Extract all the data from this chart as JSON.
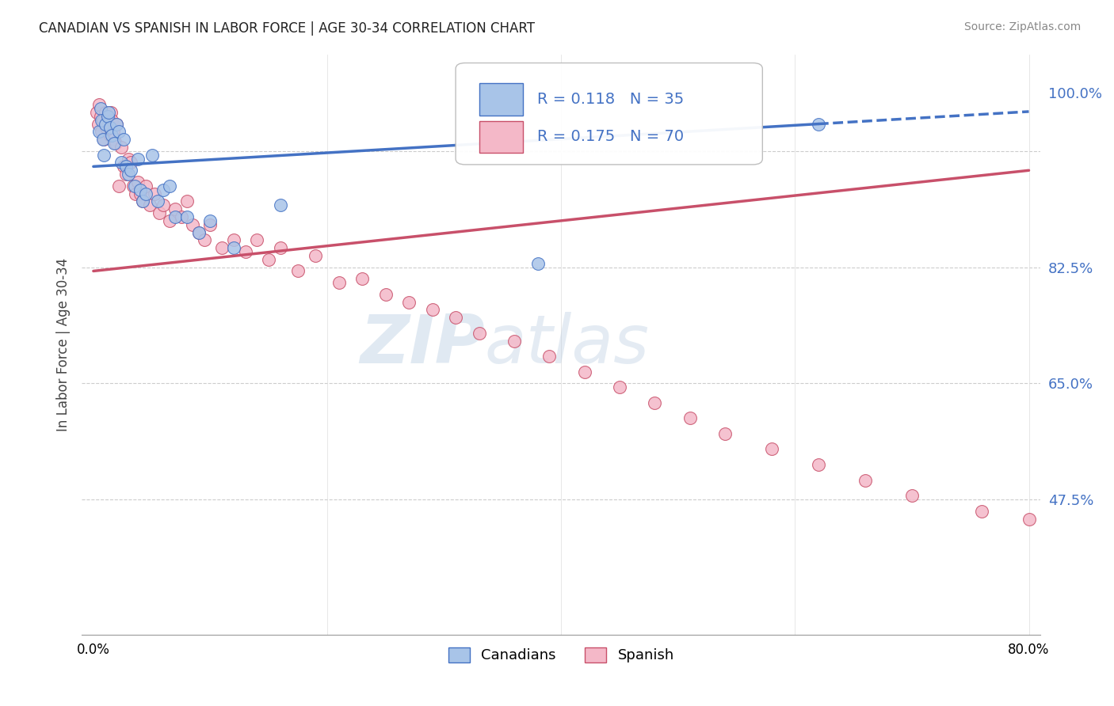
{
  "title": "CANADIAN VS SPANISH IN LABOR FORCE | AGE 30-34 CORRELATION CHART",
  "source": "Source: ZipAtlas.com",
  "ylabel": "In Labor Force | Age 30-34",
  "xlim": [
    0.0,
    0.8
  ],
  "ylim": [
    0.3,
    1.05
  ],
  "legend_blue_R": "0.118",
  "legend_blue_N": "35",
  "legend_pink_R": "0.175",
  "legend_pink_N": "70",
  "blue_color": "#a8c4e8",
  "pink_color": "#f4b8c8",
  "blue_line_color": "#4472c4",
  "pink_line_color": "#c8506a",
  "canadians_x": [
    0.005,
    0.006,
    0.007,
    0.008,
    0.009,
    0.01,
    0.012,
    0.013,
    0.014,
    0.016,
    0.018,
    0.02,
    0.022,
    0.024,
    0.026,
    0.028,
    0.03,
    0.032,
    0.035,
    0.038,
    0.04,
    0.042,
    0.045,
    0.05,
    0.055,
    0.06,
    0.065,
    0.07,
    0.08,
    0.09,
    0.1,
    0.12,
    0.16,
    0.38,
    0.62
  ],
  "canadians_y": [
    0.95,
    0.98,
    0.965,
    0.94,
    0.92,
    0.96,
    0.97,
    0.975,
    0.955,
    0.945,
    0.935,
    0.96,
    0.95,
    0.91,
    0.94,
    0.905,
    0.895,
    0.9,
    0.88,
    0.915,
    0.875,
    0.86,
    0.87,
    0.92,
    0.86,
    0.875,
    0.88,
    0.84,
    0.84,
    0.82,
    0.835,
    0.8,
    0.855,
    0.78,
    0.96
  ],
  "spanish_x": [
    0.003,
    0.004,
    0.005,
    0.006,
    0.007,
    0.008,
    0.009,
    0.01,
    0.011,
    0.012,
    0.013,
    0.014,
    0.015,
    0.016,
    0.017,
    0.018,
    0.019,
    0.02,
    0.022,
    0.024,
    0.026,
    0.028,
    0.03,
    0.032,
    0.034,
    0.036,
    0.038,
    0.04,
    0.042,
    0.045,
    0.048,
    0.052,
    0.056,
    0.06,
    0.065,
    0.07,
    0.075,
    0.08,
    0.085,
    0.09,
    0.095,
    0.1,
    0.11,
    0.12,
    0.13,
    0.14,
    0.15,
    0.16,
    0.175,
    0.19,
    0.21,
    0.23,
    0.25,
    0.27,
    0.29,
    0.31,
    0.33,
    0.36,
    0.39,
    0.42,
    0.45,
    0.48,
    0.51,
    0.54,
    0.58,
    0.62,
    0.66,
    0.7,
    0.76,
    0.8
  ],
  "spanish_y": [
    0.975,
    0.96,
    0.985,
    0.97,
    0.95,
    0.965,
    0.94,
    0.975,
    0.955,
    0.97,
    0.96,
    0.945,
    0.975,
    0.965,
    0.95,
    0.94,
    0.935,
    0.96,
    0.88,
    0.93,
    0.905,
    0.895,
    0.915,
    0.91,
    0.88,
    0.87,
    0.885,
    0.87,
    0.86,
    0.88,
    0.855,
    0.87,
    0.845,
    0.855,
    0.835,
    0.85,
    0.84,
    0.86,
    0.83,
    0.82,
    0.81,
    0.83,
    0.8,
    0.81,
    0.795,
    0.81,
    0.785,
    0.8,
    0.77,
    0.79,
    0.755,
    0.76,
    0.74,
    0.73,
    0.72,
    0.71,
    0.69,
    0.68,
    0.66,
    0.64,
    0.62,
    0.6,
    0.58,
    0.56,
    0.54,
    0.52,
    0.5,
    0.48,
    0.46,
    0.45
  ],
  "blue_trendline_x0": 0.0,
  "blue_trendline_y0": 0.905,
  "blue_trendline_x1": 0.62,
  "blue_trendline_y1": 0.96,
  "pink_trendline_x0": 0.0,
  "pink_trendline_y0": 0.77,
  "pink_trendline_x1": 0.8,
  "pink_trendline_y1": 0.9
}
